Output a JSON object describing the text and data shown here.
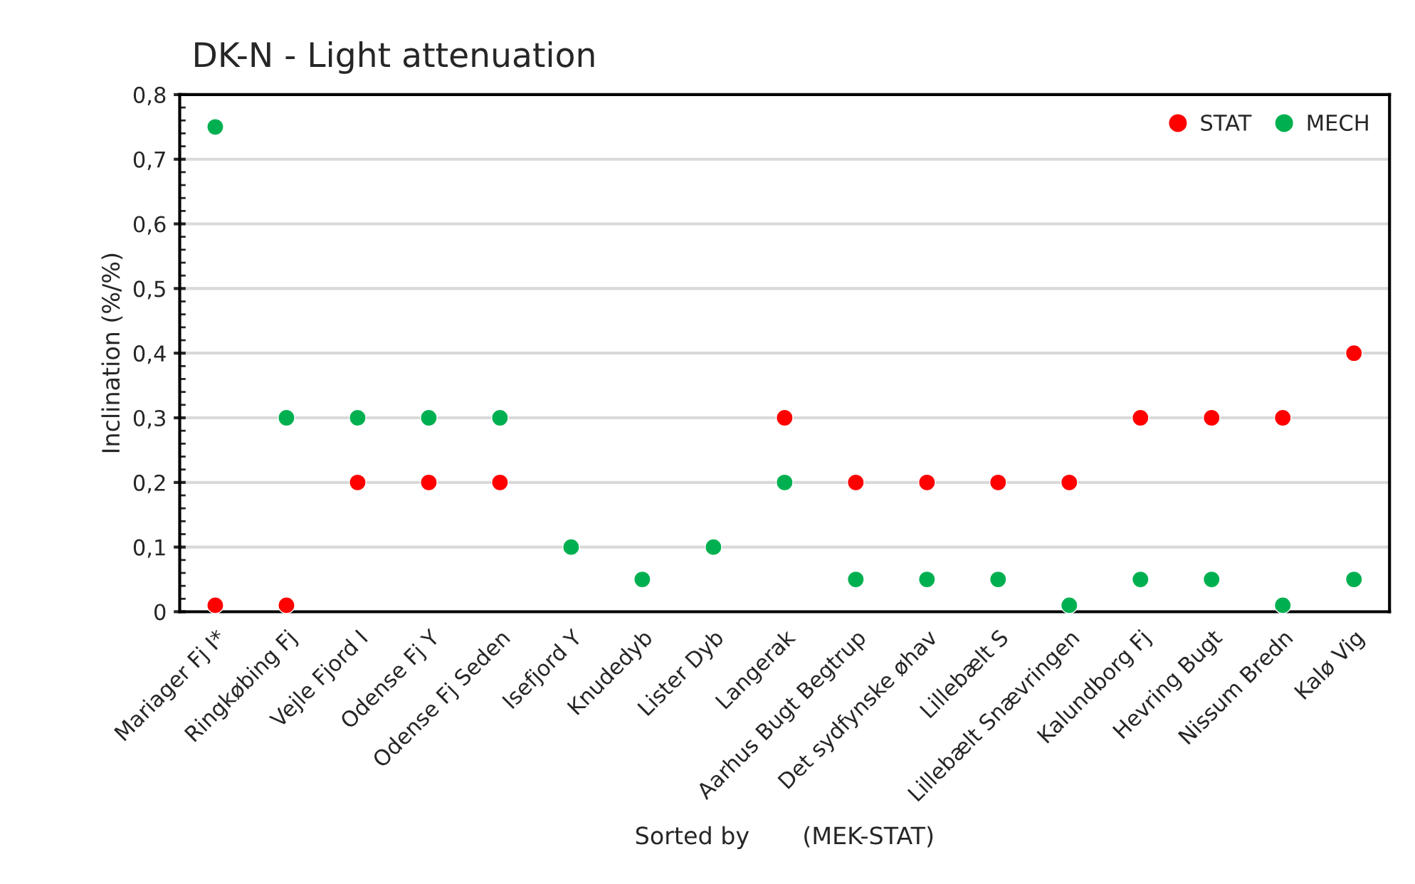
{
  "chart_data": {
    "type": "scatter",
    "title": "DK-N - Light attenuation",
    "xlabel": "Sorted by       (MEK-STAT)",
    "ylabel": "Inclination (%/%)",
    "categories": [
      "Mariager Fj I*",
      "Ringkøbing Fj",
      "Vejle Fjord I",
      "Odense Fj Y",
      "Odense Fj Seden",
      "Isefjord Y",
      "Knudedyb",
      "Lister Dyb",
      "Langerak",
      "Aarhus Bugt Begtrup",
      "Det sydfynske øhav",
      "Lillebælt S",
      "Lillebælt Snævringen",
      "Kalundborg Fj",
      "Hevring Bugt",
      "Nissum Bredn",
      "Kalø Vig"
    ],
    "series": [
      {
        "name": "STAT",
        "color": "#ff0000",
        "values": [
          0.01,
          0.01,
          0.2,
          0.2,
          0.2,
          null,
          null,
          null,
          0.3,
          0.2,
          0.2,
          0.2,
          0.2,
          0.3,
          0.3,
          0.3,
          0.4
        ]
      },
      {
        "name": "MECH",
        "color": "#00b050",
        "values": [
          0.75,
          0.3,
          0.3,
          0.3,
          0.3,
          0.1,
          0.05,
          0.1,
          0.2,
          0.05,
          0.05,
          0.05,
          0.01,
          0.05,
          0.05,
          0.01,
          0.05
        ]
      }
    ],
    "ylim": [
      0,
      0.8
    ],
    "yticks": [
      0,
      {
        "value": 0.1,
        "label": "0,1"
      },
      {
        "value": 0.2,
        "label": "0,2"
      },
      {
        "value": 0.3,
        "label": "0,3"
      },
      {
        "value": 0.4,
        "label": "0,4"
      },
      {
        "value": 0.5,
        "label": "0,5"
      },
      {
        "value": 0.6,
        "label": "0,6"
      },
      {
        "value": 0.7,
        "label": "0,7"
      },
      {
        "value": 0.8,
        "label": "0,8"
      }
    ],
    "grid": "y",
    "legend": "top right",
    "marker": "circle"
  }
}
